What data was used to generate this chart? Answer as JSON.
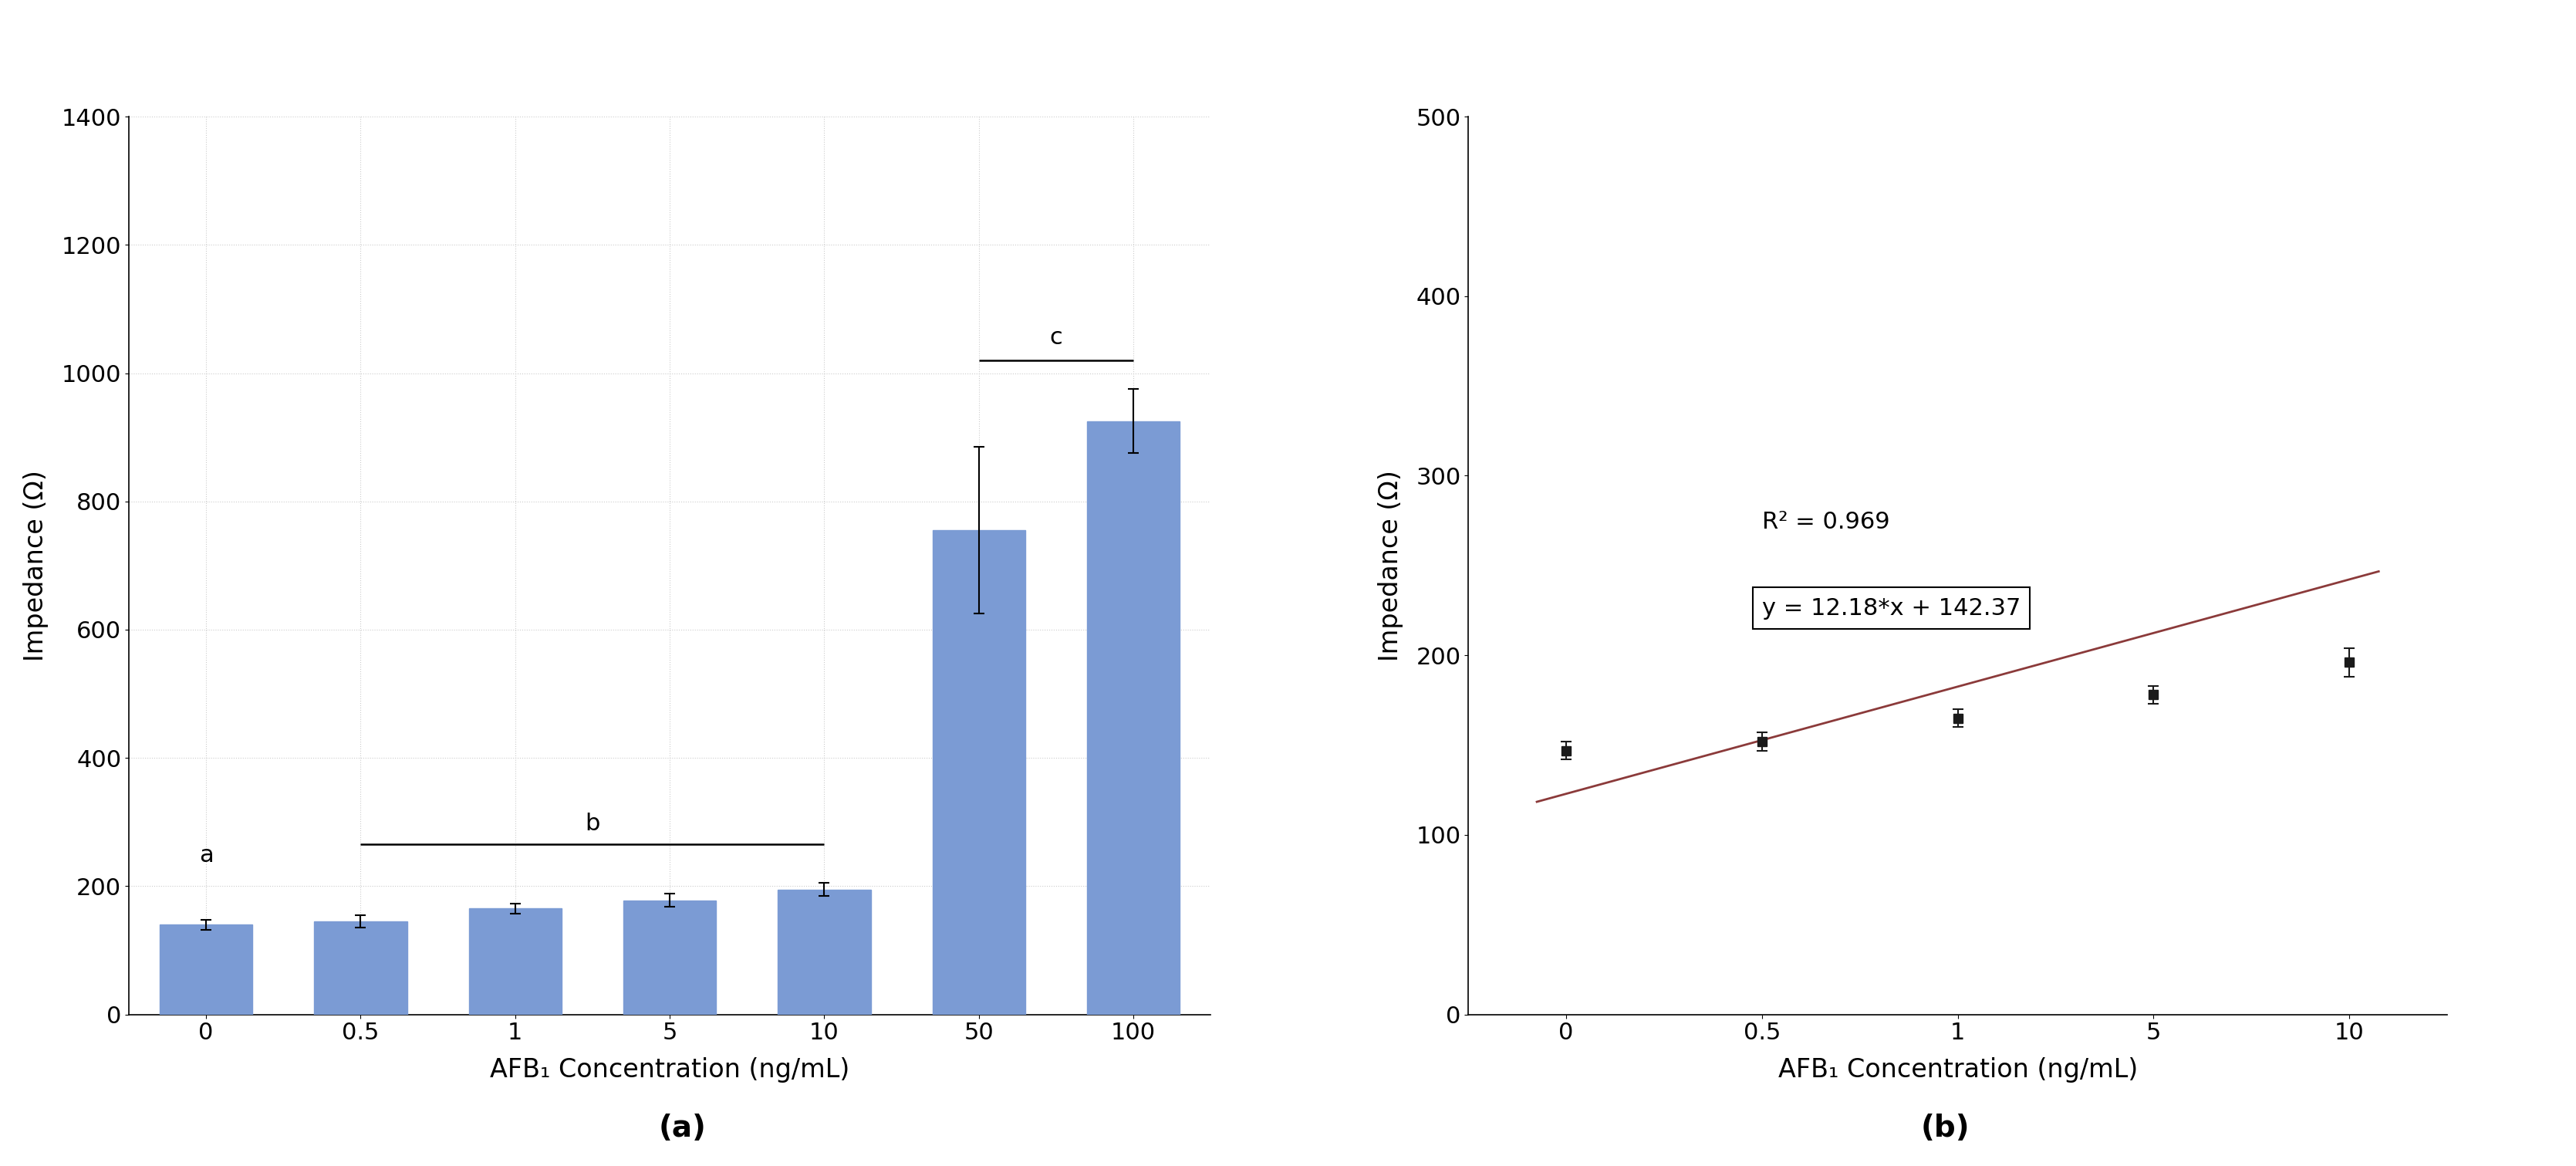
{
  "bar_categories": [
    "0",
    "0.5",
    "1",
    "5",
    "10",
    "50",
    "100"
  ],
  "bar_values": [
    140,
    145,
    165,
    178,
    195,
    755,
    925
  ],
  "bar_errors": [
    8,
    10,
    8,
    10,
    10,
    130,
    50
  ],
  "bar_color": "#7b9bd4",
  "bar_ylabel": "Impedance (Ω)",
  "bar_xlabel": "AFB₁ Concentration (ng/mL)",
  "bar_ylim": [
    0,
    1400
  ],
  "bar_yticks": [
    0,
    200,
    400,
    600,
    800,
    1000,
    1200,
    1400
  ],
  "scatter_x_idx": [
    0,
    1,
    2,
    3,
    4
  ],
  "scatter_x_labels": [
    "0",
    "0.5",
    "1",
    "5",
    "10"
  ],
  "scatter_y": [
    147,
    152,
    165,
    178,
    196
  ],
  "scatter_yerr": [
    5,
    5,
    5,
    5,
    8
  ],
  "line_slope": 12.18,
  "line_intercept": 142.37,
  "r_squared": 0.969,
  "scatter_ylabel": "Impedance (Ω)",
  "scatter_xlabel": "AFB₁ Concentration (ng/mL)",
  "scatter_ylim": [
    0,
    500
  ],
  "scatter_yticks": [
    0,
    100,
    200,
    300,
    400,
    500
  ],
  "line_color": "#8b3a3a",
  "scatter_color": "#1a1a1a",
  "label_a": "a",
  "label_b": "b",
  "label_c": "c",
  "sublabel_a": "(a)",
  "sublabel_b": "(b)",
  "background_color": "#ffffff",
  "grid_color": "#cccccc"
}
